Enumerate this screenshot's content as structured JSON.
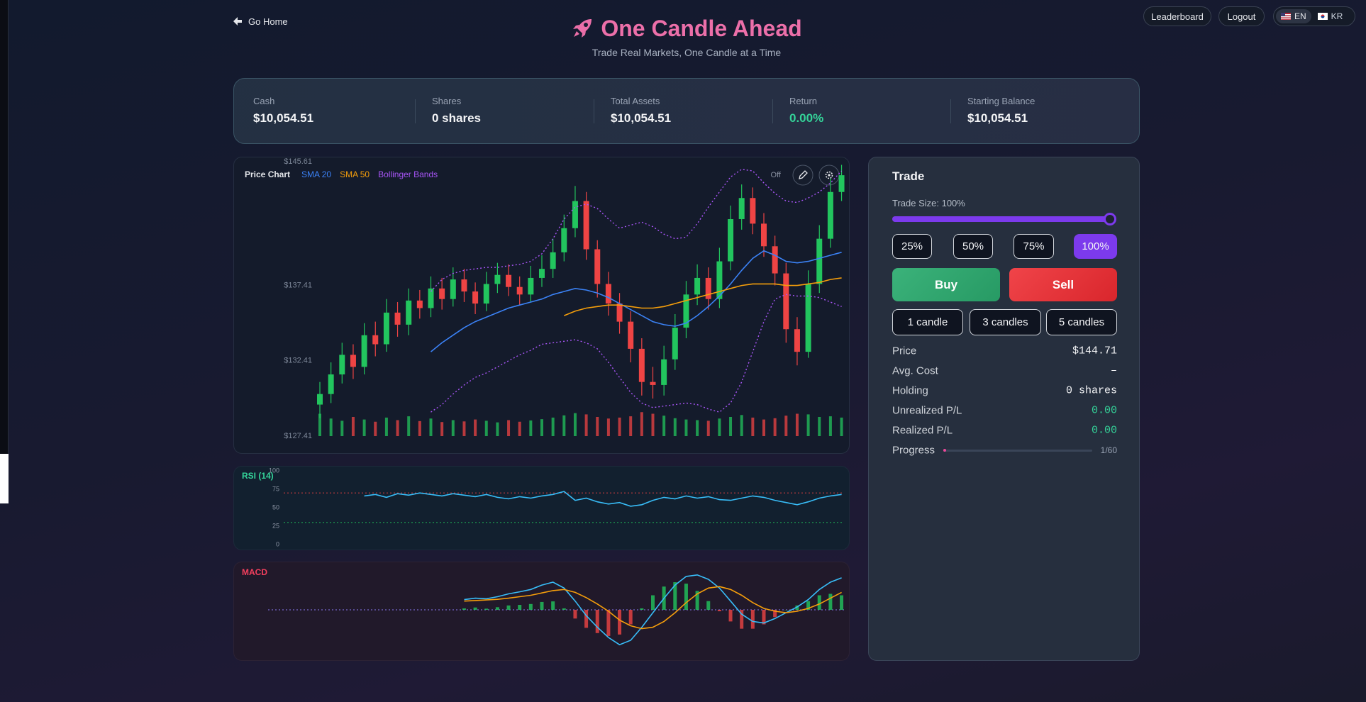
{
  "header": {
    "back": "Go Home",
    "title": "One Candle Ahead",
    "subtitle": "Trade Real Markets, One Candle at a Time",
    "nav": [
      "Leaderboard",
      "Logout"
    ],
    "languages": [
      "EN",
      "KR"
    ]
  },
  "stats": [
    {
      "label": "Cash",
      "value": "$10,054.51"
    },
    {
      "label": "Shares",
      "value": "0 shares"
    },
    {
      "label": "Total Assets",
      "value": "$10,054.51"
    },
    {
      "label": "Return",
      "value": "0.00%"
    },
    {
      "label": "Starting Balance",
      "value": "$10,054.51"
    }
  ],
  "chart_toolbar": {
    "drawing": "Off"
  },
  "chart_data": [
    {
      "type": "candlestick",
      "title": "Price Chart",
      "title_color": "#e5e7eb",
      "grid": false,
      "ylim": [
        127.41,
        145.61
      ],
      "yticks": [
        {
          "value": 127.41,
          "label": "$127.41"
        },
        {
          "value": 132.41,
          "label": "$132.41"
        },
        {
          "value": 137.41,
          "label": "$137.41"
        },
        {
          "value": 145.61,
          "label": "$145.61"
        }
      ],
      "up_color": "#22c55e",
      "down_color": "#ef4444",
      "open": [
        129.5,
        130.2,
        131.5,
        132.8,
        132.0,
        134.1,
        133.5,
        135.6,
        134.8,
        136.4,
        135.9,
        137.2,
        136.5,
        137.8,
        137.0,
        136.2,
        137.5,
        138.1,
        137.3,
        136.8,
        137.9,
        138.5,
        139.6,
        141.2,
        143.0,
        139.8,
        137.5,
        136.2,
        135.0,
        133.2,
        131.0,
        130.8,
        132.5,
        134.6,
        136.8,
        137.9,
        136.5,
        139.0,
        141.8,
        143.2,
        141.5,
        140.0,
        138.2,
        134.5,
        133.0,
        137.5,
        140.5,
        143.6
      ],
      "high": [
        131.0,
        132.3,
        133.6,
        133.5,
        134.9,
        135.0,
        136.5,
        136.3,
        137.2,
        137.1,
        138.0,
        137.9,
        138.6,
        138.5,
        137.6,
        138.3,
        138.9,
        138.8,
        138.0,
        138.7,
        139.4,
        140.5,
        142.1,
        144.0,
        143.6,
        140.4,
        138.3,
        136.9,
        135.7,
        133.9,
        132.0,
        133.4,
        135.5,
        137.7,
        138.8,
        138.6,
        139.9,
        142.7,
        144.1,
        143.9,
        142.2,
        140.7,
        138.9,
        135.3,
        138.4,
        141.4,
        144.5,
        145.4
      ],
      "low": [
        128.6,
        129.6,
        130.9,
        131.2,
        131.5,
        132.7,
        133.0,
        134.0,
        134.1,
        135.2,
        135.3,
        135.8,
        136.0,
        136.3,
        135.5,
        135.7,
        136.9,
        136.7,
        136.1,
        136.3,
        137.3,
        137.9,
        139.0,
        140.6,
        139.1,
        136.6,
        135.4,
        134.2,
        132.3,
        130.1,
        129.9,
        130.1,
        131.8,
        133.9,
        136.1,
        135.8,
        135.9,
        138.4,
        141.1,
        140.8,
        139.3,
        137.4,
        133.6,
        132.1,
        132.6,
        136.9,
        139.9,
        143.0
      ],
      "close": [
        130.2,
        131.5,
        132.8,
        132.0,
        134.1,
        133.5,
        135.6,
        134.8,
        136.4,
        135.9,
        137.2,
        136.5,
        137.8,
        137.0,
        136.2,
        137.5,
        138.1,
        137.3,
        136.8,
        137.9,
        138.5,
        139.6,
        141.2,
        143.0,
        139.8,
        137.5,
        136.2,
        135.0,
        133.2,
        131.0,
        130.8,
        132.5,
        134.6,
        136.8,
        137.9,
        136.5,
        139.0,
        141.8,
        143.2,
        141.5,
        140.0,
        138.2,
        134.5,
        133.0,
        137.5,
        140.5,
        143.6,
        144.71
      ],
      "volume": [
        70,
        55,
        48,
        60,
        52,
        45,
        58,
        50,
        62,
        47,
        55,
        44,
        50,
        46,
        52,
        48,
        43,
        50,
        45,
        49,
        53,
        58,
        65,
        72,
        68,
        60,
        55,
        58,
        62,
        75,
        70,
        64,
        56,
        52,
        50,
        48,
        55,
        60,
        66,
        58,
        52,
        56,
        64,
        70,
        68,
        60,
        62,
        58
      ],
      "volume_ylim": [
        0,
        100
      ],
      "series": [
        {
          "name": "SMA 20",
          "color": "#3b82f6",
          "values": [
            null,
            null,
            null,
            null,
            null,
            null,
            null,
            null,
            null,
            null,
            133.0,
            133.6,
            134.1,
            134.6,
            135.0,
            135.3,
            135.6,
            135.9,
            136.1,
            136.3,
            136.5,
            136.8,
            137.0,
            137.2,
            137.1,
            136.9,
            136.6,
            136.2,
            135.8,
            135.4,
            135.0,
            134.8,
            134.7,
            134.9,
            135.4,
            136.0,
            136.7,
            137.5,
            138.4,
            139.2,
            139.7,
            139.4,
            139.0,
            138.9,
            139.0,
            139.2,
            139.4,
            139.6
          ]
        },
        {
          "name": "SMA 50",
          "color": "#f59e0b",
          "values": [
            null,
            null,
            null,
            null,
            null,
            null,
            null,
            null,
            null,
            null,
            null,
            null,
            null,
            null,
            null,
            null,
            null,
            null,
            null,
            null,
            null,
            null,
            135.4,
            135.7,
            135.9,
            136.0,
            136.1,
            136.1,
            136.0,
            135.9,
            135.9,
            136.0,
            136.2,
            136.4,
            136.6,
            136.8,
            137.0,
            137.2,
            137.4,
            137.5,
            137.5,
            137.5,
            137.4,
            137.4,
            137.5,
            137.6,
            137.8,
            137.9
          ]
        },
        {
          "name": "Bollinger Bands",
          "color": "#a855f7",
          "upper": [
            null,
            null,
            null,
            null,
            null,
            null,
            null,
            null,
            null,
            null,
            137.0,
            137.8,
            138.2,
            138.4,
            138.5,
            138.6,
            138.6,
            138.7,
            138.8,
            139.0,
            139.5,
            140.5,
            141.8,
            142.6,
            142.8,
            142.5,
            141.8,
            141.2,
            141.4,
            141.6,
            141.3,
            140.8,
            140.5,
            140.6,
            141.5,
            142.6,
            143.6,
            144.6,
            145.1,
            145.0,
            144.2,
            143.5,
            143.0,
            142.9,
            143.2,
            143.6,
            144.2,
            145.0
          ],
          "lower": [
            null,
            null,
            null,
            null,
            null,
            null,
            null,
            null,
            null,
            null,
            129.0,
            129.5,
            130.2,
            130.8,
            131.3,
            131.6,
            132.0,
            132.4,
            132.8,
            133.1,
            133.5,
            133.6,
            133.7,
            133.8,
            133.6,
            133.2,
            132.3,
            131.3,
            130.3,
            129.6,
            129.3,
            129.4,
            129.5,
            129.6,
            129.5,
            129.2,
            129.0,
            129.6,
            131.0,
            133.0,
            135.0,
            136.5,
            136.8,
            136.7,
            136.7,
            136.6,
            136.3,
            136.0
          ]
        }
      ]
    },
    {
      "type": "line",
      "title": "RSI (14)",
      "title_color": "#34d399",
      "ylim": [
        0,
        100
      ],
      "yticks": [
        0,
        25,
        50,
        75,
        100
      ],
      "reference_lines": [
        {
          "value": 70,
          "color": "#ef4444"
        },
        {
          "value": 30,
          "color": "#22c55e"
        }
      ],
      "series": [
        {
          "color": "#38bdf8",
          "values": [
            null,
            null,
            null,
            null,
            66,
            68,
            64,
            69,
            67,
            70,
            68,
            66,
            69,
            67,
            65,
            68,
            64,
            62,
            65,
            63,
            66,
            68,
            72,
            60,
            63,
            58,
            55,
            57,
            52,
            54,
            60,
            64,
            62,
            66,
            63,
            65,
            61,
            60,
            63,
            66,
            64,
            60,
            57,
            54,
            58,
            63,
            66,
            68
          ]
        }
      ]
    },
    {
      "type": "line",
      "title": "MACD",
      "title_color": "#f43f5e",
      "ylim": [
        -2,
        2
      ],
      "reference_lines": [
        {
          "value": 0,
          "color": "#8b7cf6"
        }
      ],
      "histogram": {
        "up_color": "#22c55e",
        "down_color": "#ef4444",
        "values": [
          null,
          null,
          null,
          null,
          null,
          null,
          null,
          null,
          null,
          null,
          null,
          null,
          null,
          0.05,
          0.08,
          0.04,
          0.09,
          0.15,
          0.17,
          0.2,
          0.27,
          0.29,
          0.05,
          -0.3,
          -0.62,
          -0.8,
          -0.9,
          -0.85,
          -0.5,
          0.05,
          0.5,
          0.8,
          0.95,
          0.9,
          0.65,
          0.3,
          -0.05,
          -0.4,
          -0.65,
          -0.65,
          -0.5,
          -0.25,
          0.0,
          0.15,
          0.3,
          0.5,
          0.55,
          0.5
        ]
      },
      "series": [
        {
          "color": "#38bdf8",
          "values": [
            null,
            null,
            null,
            null,
            null,
            null,
            null,
            null,
            null,
            null,
            null,
            null,
            null,
            0.35,
            0.4,
            0.38,
            0.45,
            0.55,
            0.62,
            0.7,
            0.85,
            0.95,
            0.75,
            0.3,
            -0.2,
            -0.6,
            -0.95,
            -1.2,
            -1.05,
            -0.6,
            -0.1,
            0.4,
            0.85,
            1.15,
            1.2,
            1.05,
            0.75,
            0.3,
            -0.15,
            -0.4,
            -0.45,
            -0.3,
            -0.1,
            0.1,
            0.35,
            0.7,
            0.95,
            1.1
          ]
        },
        {
          "color": "#f59e0b",
          "values": [
            null,
            null,
            null,
            null,
            null,
            null,
            null,
            null,
            null,
            null,
            null,
            null,
            null,
            0.3,
            0.32,
            0.34,
            0.36,
            0.4,
            0.45,
            0.5,
            0.58,
            0.66,
            0.7,
            0.6,
            0.42,
            0.2,
            -0.05,
            -0.35,
            -0.55,
            -0.65,
            -0.6,
            -0.4,
            -0.1,
            0.25,
            0.55,
            0.75,
            0.8,
            0.7,
            0.5,
            0.25,
            0.05,
            -0.05,
            -0.1,
            -0.05,
            0.05,
            0.2,
            0.4,
            0.6
          ]
        }
      ]
    }
  ],
  "trade": {
    "title": "Trade",
    "size_label": "Trade Size: 100%",
    "size": 100,
    "size_range": [
      0,
      100
    ],
    "size_options": [
      "25%",
      "50%",
      "75%",
      "100%"
    ],
    "active_option": 3,
    "buy": "Buy",
    "sell": "Sell",
    "step_options": [
      "1 candle",
      "3 candles",
      "5 candles"
    ],
    "rows": [
      {
        "label": "Price",
        "value": "$144.71"
      },
      {
        "label": "Avg. Cost",
        "value": "–"
      },
      {
        "label": "Holding",
        "value": "0 shares"
      },
      {
        "label": "Unrealized P/L",
        "value": "0.00"
      },
      {
        "label": "Realized P/L",
        "value": "0.00"
      }
    ],
    "progress": {
      "label": "Progress",
      "text": "1/60",
      "current": 1,
      "total": 60
    }
  }
}
